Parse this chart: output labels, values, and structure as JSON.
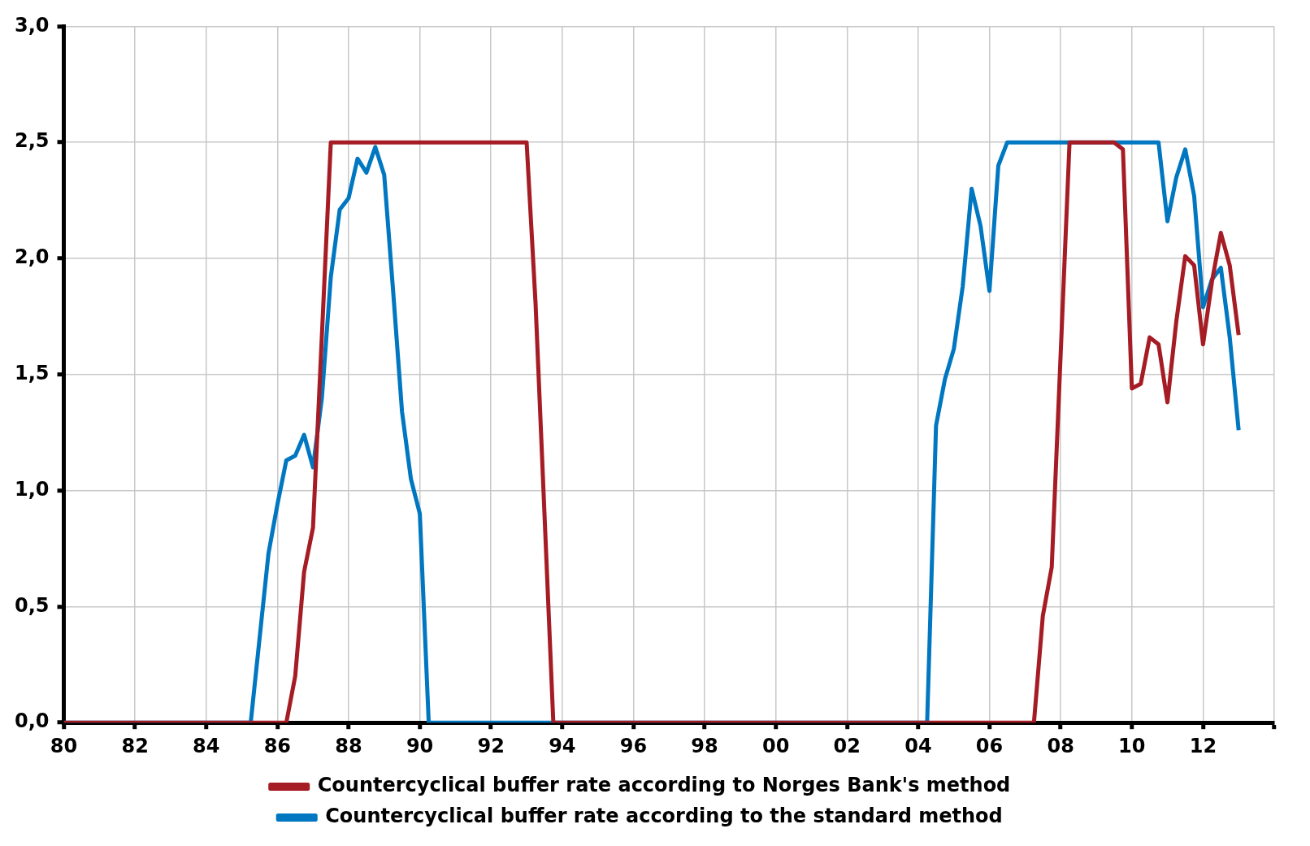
{
  "chart_data": {
    "type": "line",
    "xlim": [
      1980,
      2014
    ],
    "ylim": [
      0,
      3
    ],
    "xticks": [
      {
        "value": 1980,
        "label": "80"
      },
      {
        "value": 1982,
        "label": "82"
      },
      {
        "value": 1984,
        "label": "84"
      },
      {
        "value": 1986,
        "label": "86"
      },
      {
        "value": 1988,
        "label": "88"
      },
      {
        "value": 1990,
        "label": "90"
      },
      {
        "value": 1992,
        "label": "92"
      },
      {
        "value": 1994,
        "label": "94"
      },
      {
        "value": 1996,
        "label": "96"
      },
      {
        "value": 1998,
        "label": "98"
      },
      {
        "value": 2000,
        "label": "00"
      },
      {
        "value": 2002,
        "label": "02"
      },
      {
        "value": 2004,
        "label": "04"
      },
      {
        "value": 2006,
        "label": "06"
      },
      {
        "value": 2008,
        "label": "08"
      },
      {
        "value": 2010,
        "label": "10"
      },
      {
        "value": 2012,
        "label": "12"
      },
      {
        "value": 2014,
        "label": null
      }
    ],
    "yticks": [
      {
        "value": 0,
        "label": "0,0"
      },
      {
        "value": 0.5,
        "label": "0,5"
      },
      {
        "value": 1,
        "label": "1,0"
      },
      {
        "value": 1.5,
        "label": "1,5"
      },
      {
        "value": 2,
        "label": "2,0"
      },
      {
        "value": 2.5,
        "label": "2,5"
      },
      {
        "value": 3,
        "label": "3,0"
      }
    ],
    "grid": true,
    "legend": "bottom",
    "line_style": "solid",
    "marker": "none",
    "series": [
      {
        "name": "Countercyclical buffer rate according to Norges Bank's method",
        "color": "#a51c24",
        "x": [
          1980,
          1986.25,
          1986.5,
          1986.75,
          1987,
          1987.5,
          1993,
          1993.25,
          1993.75,
          2007.25,
          2007.5,
          2007.75,
          2008.25,
          2009.5,
          2009.75,
          2010,
          2010.25,
          2010.5,
          2010.75,
          2011,
          2011.25,
          2011.5,
          2011.75,
          2012,
          2012.25,
          2012.5,
          2012.75,
          2013
        ],
        "values": [
          0,
          0,
          0.2,
          0.65,
          0.84,
          2.5,
          2.5,
          1.81,
          0,
          0,
          0.46,
          0.67,
          2.5,
          2.5,
          2.47,
          1.44,
          1.46,
          1.66,
          1.63,
          1.38,
          1.73,
          2.01,
          1.97,
          1.63,
          1.9,
          2.11,
          1.97,
          1.67
        ]
      },
      {
        "name": "Countercyclical buffer rate according to the standard method",
        "color": "#0077c0",
        "x": [
          1980,
          1985.25,
          1985.75,
          1986,
          1986.25,
          1986.5,
          1986.75,
          1987,
          1987.25,
          1987.5,
          1987.75,
          1988,
          1988.25,
          1988.5,
          1988.75,
          1989,
          1989.25,
          1989.5,
          1989.75,
          1990,
          1990.25,
          2004.25,
          2004.5,
          2004.75,
          2005,
          2005.25,
          2005.5,
          2005.75,
          2006,
          2006.25,
          2006.5,
          2010.75,
          2011,
          2011.25,
          2011.5,
          2011.75,
          2012,
          2012.25,
          2012.5,
          2012.75,
          2013
        ],
        "values": [
          0,
          0,
          0.73,
          0.94,
          1.13,
          1.15,
          1.24,
          1.1,
          1.4,
          1.92,
          2.21,
          2.26,
          2.43,
          2.37,
          2.48,
          2.36,
          1.86,
          1.34,
          1.05,
          0.9,
          0,
          0,
          1.28,
          1.48,
          1.61,
          1.88,
          2.3,
          2.14,
          1.86,
          2.4,
          2.5,
          2.5,
          2.16,
          2.35,
          2.47,
          2.27,
          1.79,
          1.91,
          1.96,
          1.66,
          1.26
        ]
      }
    ]
  }
}
